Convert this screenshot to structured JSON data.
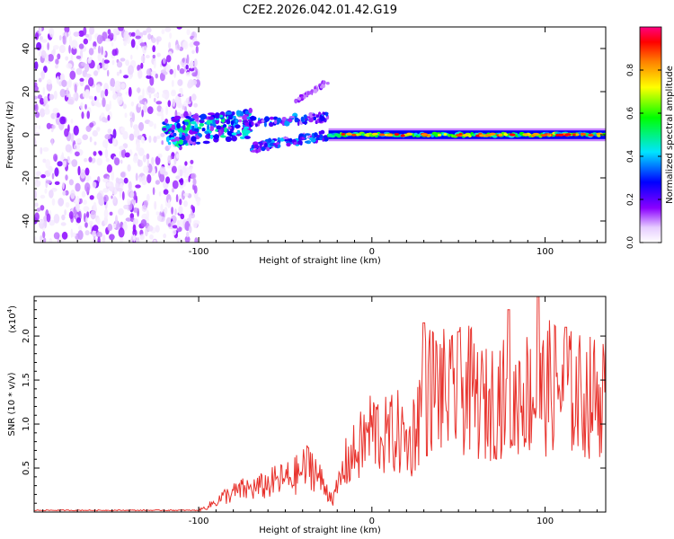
{
  "title": "C2E2.2026.042.01.42.G19",
  "chart_data": [
    {
      "type": "heatmap",
      "xlabel": "Height of straight line (km)",
      "ylabel": "Frequency (Hz)",
      "xlim": [
        -195,
        135
      ],
      "ylim": [
        -50,
        50
      ],
      "xticks": [
        -100,
        0,
        100
      ],
      "xtick_labels": [
        "-100",
        "0",
        "100"
      ],
      "yticks": [
        -40,
        -20,
        0,
        20,
        40
      ],
      "ytick_labels": [
        "-40",
        "-20",
        "0",
        "20",
        "40"
      ],
      "colorbar": {
        "label": "Normalized spectral amplitude",
        "range": [
          0,
          1
        ],
        "ticks": [
          0,
          0.2,
          0.4,
          0.6,
          0.8
        ],
        "tick_labels": [
          "0.0",
          "0.2",
          "0.4",
          "0.6",
          "0.8"
        ]
      },
      "regions": [
        {
          "name": "noise",
          "x": [
            -195,
            -100
          ],
          "y": [
            -50,
            50
          ],
          "amplitude": 0.1
        },
        {
          "name": "onset",
          "x": [
            -120,
            -70
          ],
          "y": [
            -5,
            8
          ],
          "amplitude": 0.4
        },
        {
          "name": "branch",
          "x": [
            -70,
            -25
          ],
          "y": [
            -8,
            10
          ],
          "amplitude": 0.3
        },
        {
          "name": "streak",
          "x": [
            -45,
            -25
          ],
          "y": [
            15,
            25
          ],
          "amplitude": 0.1
        },
        {
          "name": "signal",
          "x": [
            -25,
            135
          ],
          "y": [
            -1,
            1
          ],
          "amplitude": 0.7
        }
      ]
    },
    {
      "type": "line",
      "xlabel": "Height of straight line (km)",
      "ylabel": "SNR (10 * v/v)",
      "scale_label": "(x10",
      "scale_exp": "4",
      "xlim": [
        -195,
        135
      ],
      "ylim": [
        0,
        2.45
      ],
      "xticks": [
        -100,
        0,
        100
      ],
      "xtick_labels": [
        "-100",
        "0",
        "100"
      ],
      "yticks": [
        0.5,
        1.0,
        1.5,
        2.0
      ],
      "ytick_labels": [
        "0.5",
        "1.0",
        "1.5",
        "2.0"
      ],
      "line_color": "#e8322c",
      "series": [
        {
          "name": "SNR",
          "x": [
            -195,
            -100,
            -95,
            -85,
            -75,
            -65,
            -55,
            -45,
            -35,
            -28,
            -22,
            -15,
            -8,
            0,
            8,
            15,
            22,
            28,
            35,
            45,
            55,
            65,
            75,
            80,
            85,
            95,
            105,
            115,
            125,
            135
          ],
          "y": [
            0.02,
            0.02,
            0.06,
            0.18,
            0.25,
            0.28,
            0.35,
            0.4,
            0.55,
            0.3,
            0.15,
            0.55,
            0.7,
            0.95,
            0.85,
            0.9,
            0.75,
            1.2,
            1.45,
            1.3,
            1.4,
            1.2,
            1.35,
            1.0,
            1.4,
            1.3,
            1.45,
            1.35,
            1.3,
            1.35
          ]
        }
      ],
      "peaks": [
        {
          "x": 30,
          "y": 2.15
        },
        {
          "x": 50,
          "y": 2.05
        },
        {
          "x": 79,
          "y": 2.3
        },
        {
          "x": 96,
          "y": 2.45
        },
        {
          "x": 112,
          "y": 2.1
        }
      ]
    }
  ]
}
